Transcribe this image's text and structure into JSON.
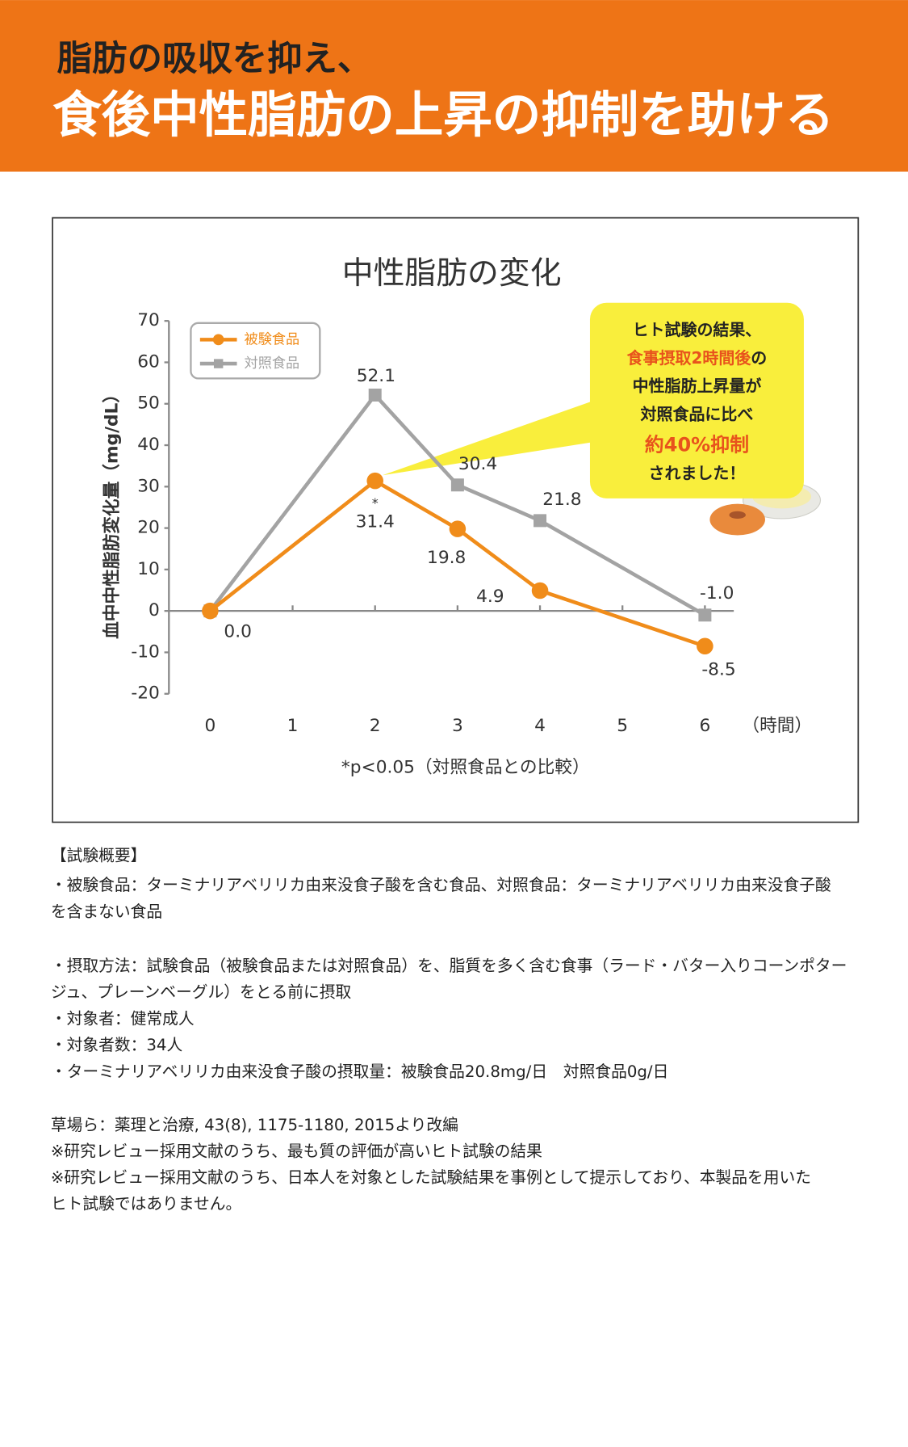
{
  "header": {
    "line1": "脂肪の吸収を抑え、",
    "line2": "食後中性脂肪の上昇の抑制を助ける"
  },
  "chart_data": {
    "type": "line",
    "title": "中性脂肪の変化",
    "y_label": "血中中性脂肪変化量（mg/dL）",
    "x_label": "（時間）",
    "x": [
      0,
      2,
      3,
      4,
      6
    ],
    "series": [
      {
        "name": "被験食品",
        "color": "#f08c1a",
        "marker": "circle",
        "values": [
          0,
          31.4,
          19.8,
          4.9,
          -8.5
        ],
        "value_labels": [
          "0.0",
          "31.4",
          "19.8",
          "4.9",
          "-8.5"
        ]
      },
      {
        "name": "対照食品",
        "color": "#a3a3a3",
        "marker": "square",
        "values": [
          0,
          52.1,
          30.4,
          21.8,
          -1
        ],
        "value_labels": [
          null,
          "52.1",
          "30.4",
          "21.8",
          "-1.0"
        ]
      }
    ],
    "xlim": [
      -0.5,
      6.35
    ],
    "xticks": [
      0,
      1,
      2,
      3,
      4,
      5,
      6
    ],
    "ylim": [
      -20,
      70
    ],
    "yticks": [
      -20,
      -10,
      0,
      10,
      20,
      30,
      40,
      50,
      60,
      70
    ],
    "legend": "upper left",
    "significance_marker": "*",
    "footnote": "*p<0.05（対照食品との比較）",
    "callout": {
      "lines": [
        [
          {
            "text": "ヒト試験の結果、",
            "color": "#222222"
          }
        ],
        [
          {
            "text": "食事摂取2時間後",
            "color": "#e8531c"
          },
          {
            "text": "の",
            "color": "#222222"
          }
        ],
        [
          {
            "text": "中性脂肪上昇量が",
            "color": "#222222"
          }
        ],
        [
          {
            "text": "対照食品に比べ",
            "color": "#222222"
          }
        ],
        [
          {
            "text": "約40%抑制",
            "color": "#e8531c"
          }
        ],
        [
          {
            "text": "されました！",
            "color": "#222222"
          }
        ]
      ]
    }
  },
  "summary": {
    "heading": "【試験概要】",
    "items": [
      [
        "・被験食品：ターミナリアベリリカ由来没食子酸を含む食品、対照食品：ターミナリアベリリカ由来没食子酸",
        "を含まない食品"
      ],
      [
        "・摂取方法：試験食品（被験食品または対照食品）を、脂質を多く含む食事（ラード・バター入りコーンポター",
        "ジュ、プレーンベーグル）をとる前に摂取"
      ],
      [
        "・対象者：健常成人"
      ],
      [
        "・対象者数：34人"
      ],
      [
        "・ターミナリアベリリカ由来没食子酸の摂取量：被験食品20.8mg/日　対照食品0g/日"
      ]
    ],
    "references": [
      [
        "草場ら：薬理と治療, 43(8), 1175-1180, 2015より改編"
      ],
      [
        "※研究レビュー採用文献のうち、最も質の評価が高いヒト試験の結果"
      ],
      [
        "※研究レビュー採用文献のうち、日本人を対象とした試験結果を事例として提示しており、本製品を用いた",
        "ヒト試験ではありません。"
      ]
    ]
  }
}
